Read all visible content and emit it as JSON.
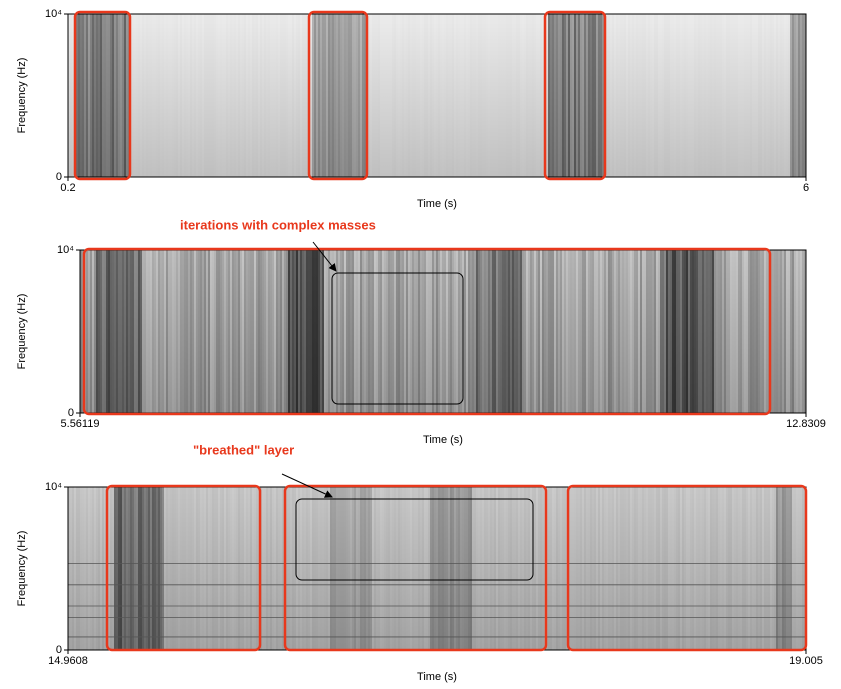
{
  "chart_data": [
    {
      "type": "spectrogram",
      "xlabel": "Time (s)",
      "ylabel": "Frequency (Hz)",
      "xlim": [
        0.2,
        6
      ],
      "xticks": [
        0.2,
        6
      ],
      "ylim": [
        0,
        10000
      ],
      "yticks": [
        0,
        {
          "value": 10000,
          "label": "10⁴"
        }
      ]
    },
    {
      "type": "spectrogram",
      "xlabel": "Time (s)",
      "ylabel": "Frequency (Hz)",
      "annotation": "iterations with complex masses",
      "xlim": [
        5.56119,
        12.8309
      ],
      "xticks": [
        5.56119,
        12.8309
      ],
      "ylim": [
        0,
        10000
      ],
      "yticks": [
        0,
        {
          "value": 10000,
          "label": "10⁴"
        }
      ]
    },
    {
      "type": "spectrogram",
      "xlabel": "Time (s)",
      "ylabel": "Frequency (Hz)",
      "annotation": "\"breathed\" layer",
      "xlim": [
        14.9608,
        19.005
      ],
      "xticks": [
        14.9608,
        19.005
      ],
      "ylim": [
        0,
        10000
      ],
      "yticks": [
        0,
        {
          "value": 10000,
          "label": "10⁴"
        }
      ]
    }
  ]
}
